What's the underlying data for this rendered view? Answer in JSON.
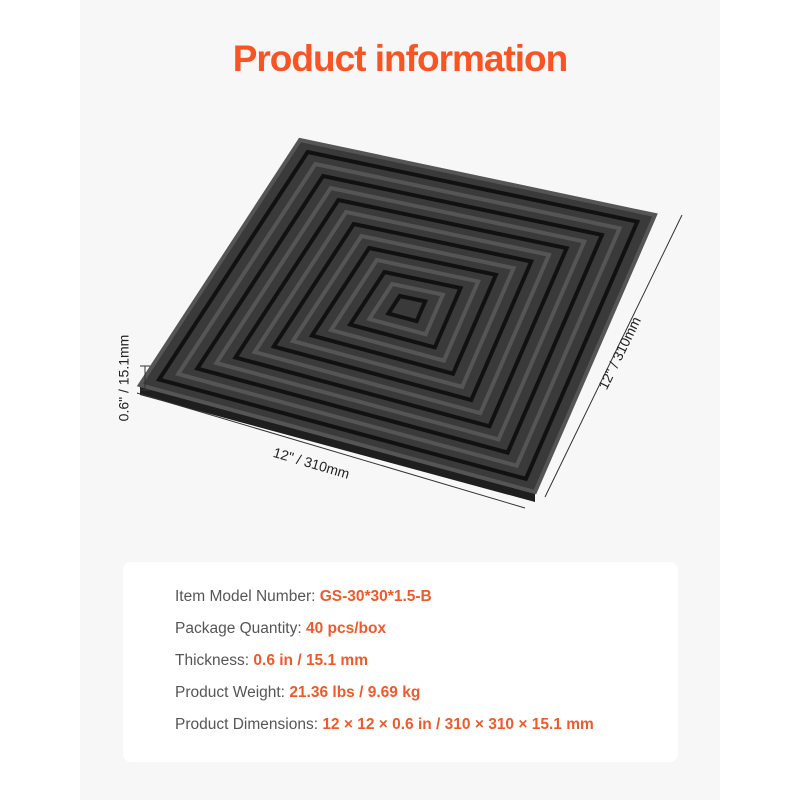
{
  "title": "Product information",
  "dimensions": {
    "width_label": "12\" / 310mm",
    "depth_label": "12\" / 310mm",
    "thickness_label": "0.6\" / 15.1mm"
  },
  "specs": [
    {
      "label": "Item Model Number: ",
      "value": "GS-30*30*1.5-B"
    },
    {
      "label": "Package Quantity: ",
      "value": "40 pcs/box"
    },
    {
      "label": "Thickness: ",
      "value": "0.6 in / 15.1 mm"
    },
    {
      "label": "Product Weight: ",
      "value": "21.36 lbs / 9.69 kg"
    },
    {
      "label": "Product Dimensions: ",
      "value": "12 × 12 × 0.6 in / 310 × 310 × 15.1 mm"
    }
  ],
  "colors": {
    "accent": "#fa5423",
    "tile": "#2b2b2b",
    "panel": "#f7f7f7"
  }
}
